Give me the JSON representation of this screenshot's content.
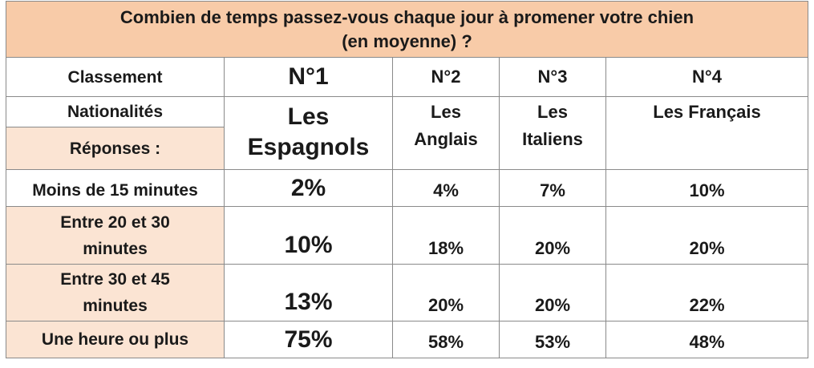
{
  "title_line1": "Combien de temps passez-vous chaque jour à promener votre chien",
  "title_line2": "(en moyenne) ?",
  "row_labels": {
    "classement": "Classement",
    "nationalites": "Nationalités",
    "reponses": "Réponses :"
  },
  "columns": [
    {
      "rank": "N°1",
      "nationality_line1": "Les",
      "nationality_line2": "Espagnols",
      "values": [
        "2%",
        "10%",
        "13%",
        "75%"
      ]
    },
    {
      "rank": "N°2",
      "nationality_line1": "Les",
      "nationality_line2": "Anglais",
      "values": [
        "4%",
        "18%",
        "20%",
        "58%"
      ]
    },
    {
      "rank": "N°3",
      "nationality_line1": "Les",
      "nationality_line2": "Italiens",
      "values": [
        "7%",
        "20%",
        "20%",
        "53%"
      ]
    },
    {
      "rank": "N°4",
      "nationality_line1": "Les Français",
      "nationality_line2": "",
      "values": [
        "10%",
        "20%",
        "22%",
        "48%"
      ]
    }
  ],
  "answers": [
    {
      "line1": "Moins de 15 minutes",
      "line2": ""
    },
    {
      "line1": "Entre 20 et 30",
      "line2": "minutes"
    },
    {
      "line1": "Entre 30 et 45",
      "line2": "minutes"
    },
    {
      "line1": "Une heure ou plus",
      "line2": ""
    }
  ]
}
